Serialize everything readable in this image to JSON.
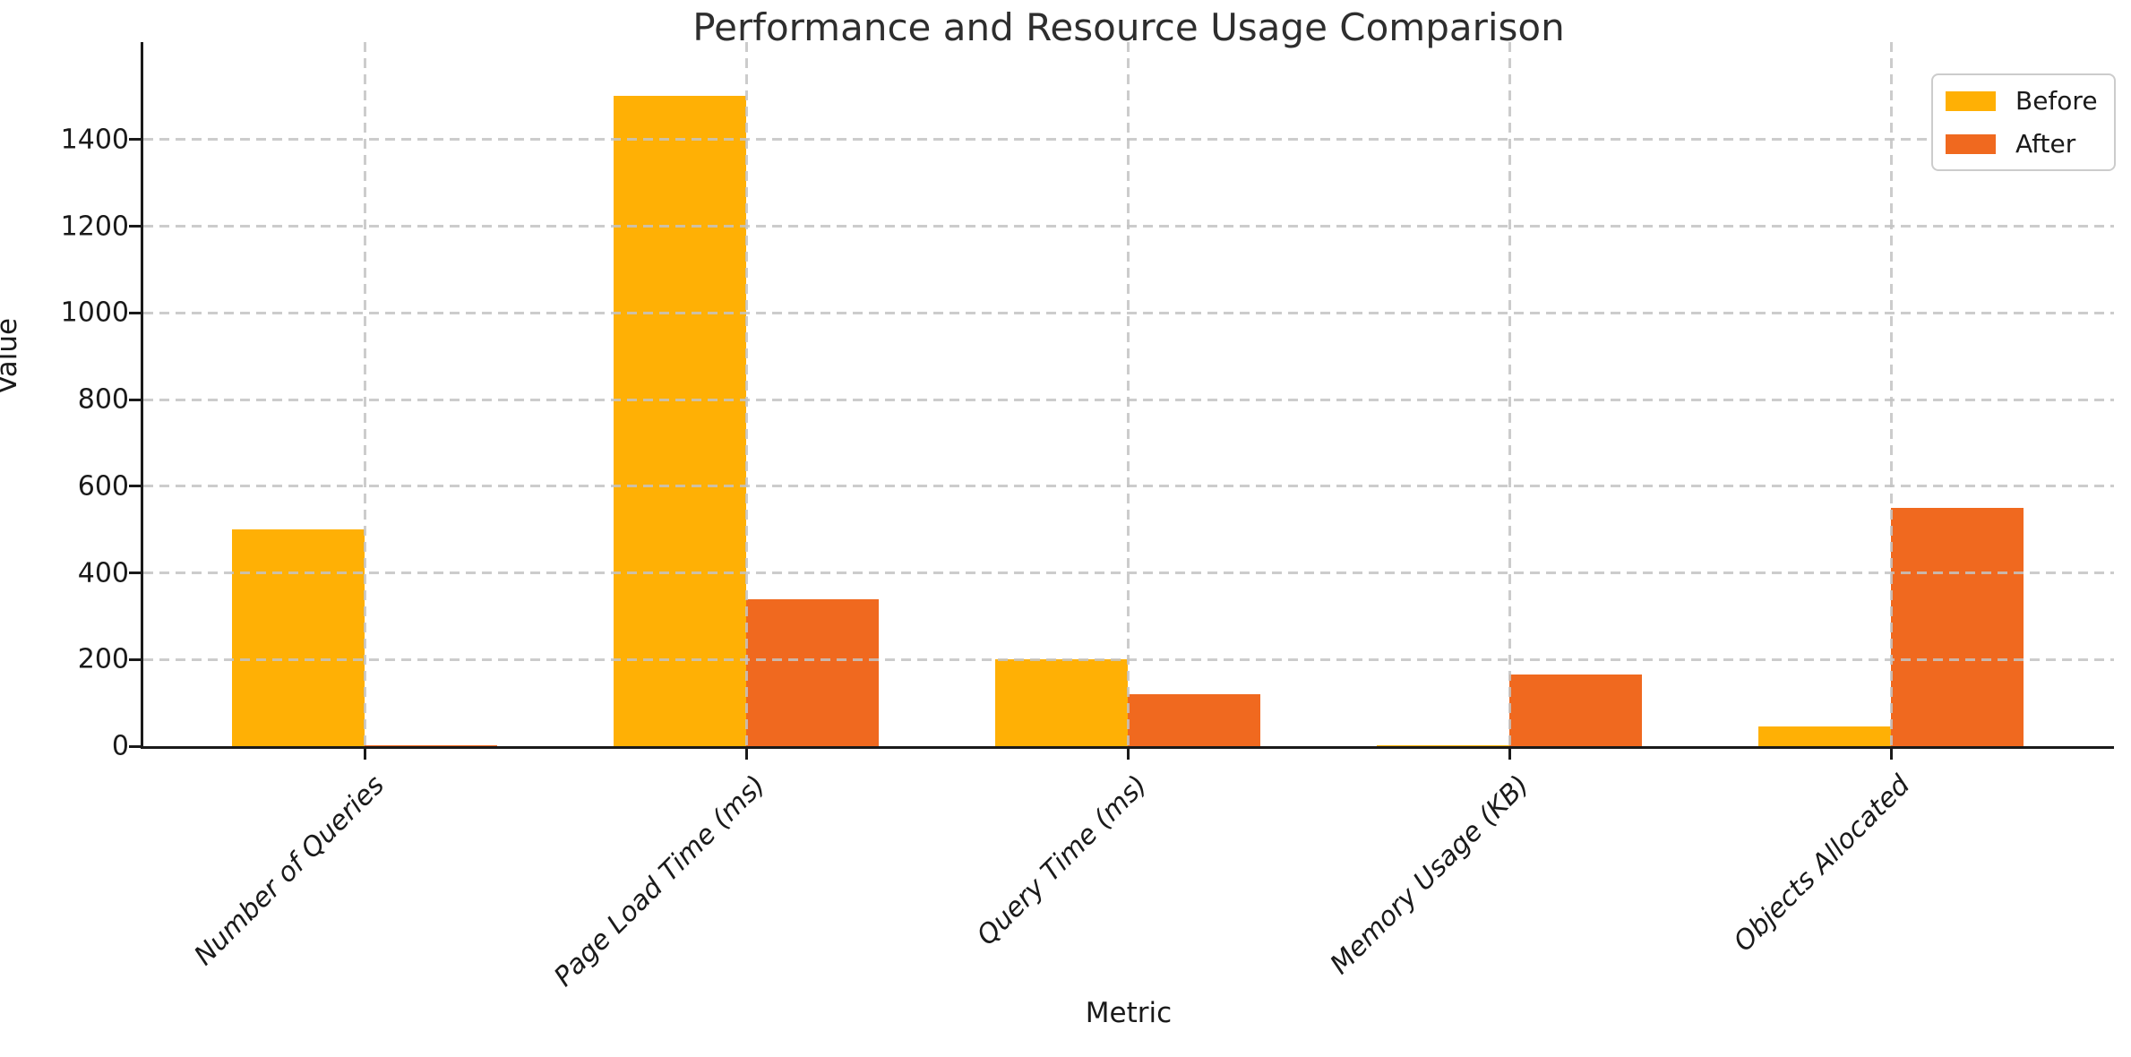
{
  "chart_data": {
    "type": "bar",
    "title": "Performance and Resource Usage Comparison",
    "xlabel": "Metric",
    "ylabel": "Value",
    "categories": [
      "Number of Queries",
      "Page Load Time (ms)",
      "Query Time (ms)",
      "Memory Usage (KB)",
      "Objects Allocated"
    ],
    "series": [
      {
        "name": "Before",
        "color": "#FFB005",
        "values": [
          500,
          1500,
          200,
          3,
          45
        ]
      },
      {
        "name": "After",
        "color": "#F0691F",
        "values": [
          2,
          340,
          120,
          165,
          550
        ]
      }
    ],
    "yticks": [
      0,
      200,
      400,
      600,
      800,
      1000,
      1200,
      1400
    ],
    "ylim": [
      0,
      1625
    ],
    "grid": true,
    "grid_style": "dashed",
    "grid_above_bars": true,
    "legend_position": "upper right",
    "bar_layout": "grouped"
  }
}
